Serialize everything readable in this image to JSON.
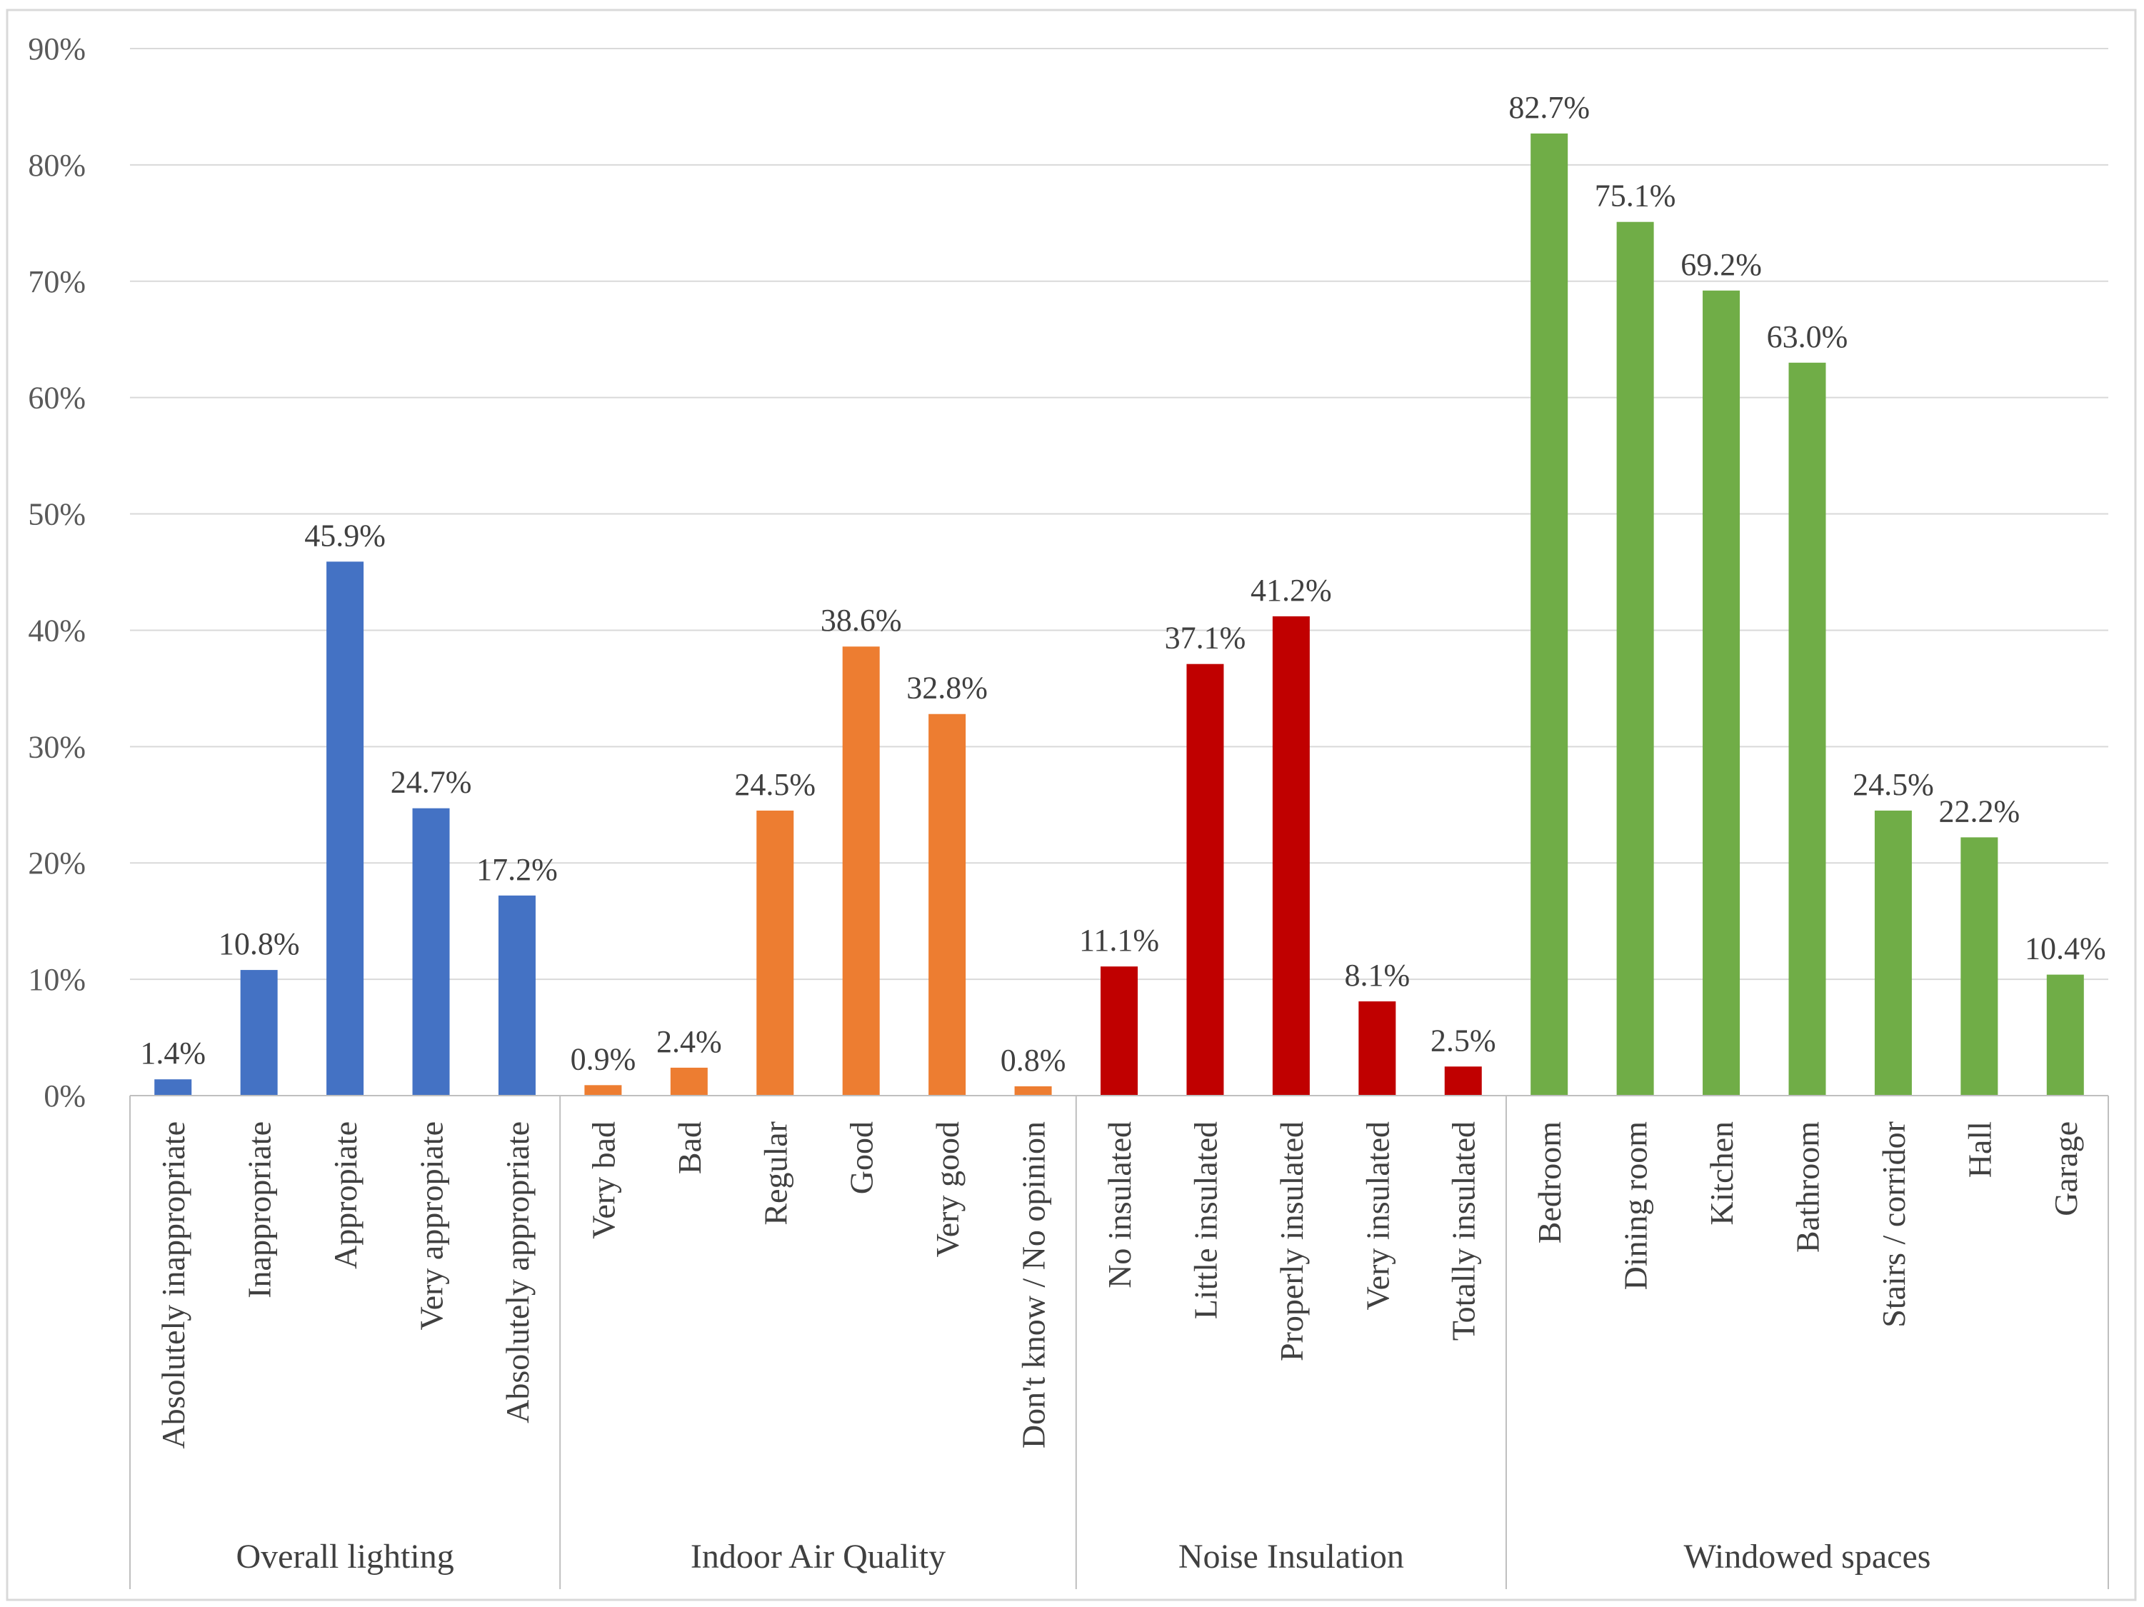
{
  "chart_data": {
    "type": "bar",
    "title": "",
    "xlabel": "",
    "ylabel": "",
    "ylim": [
      0,
      90
    ],
    "yticks": [
      "0%",
      "10%",
      "20%",
      "30%",
      "40%",
      "50%",
      "60%",
      "70%",
      "80%",
      "90%"
    ],
    "grid": true,
    "groups": [
      {
        "name": "Overall lighting",
        "color": "#4472c4",
        "categories": [
          "Absolutely inappropriate",
          "Inappropriate",
          "Appropiate",
          "Very appropiate",
          "Absolutely appropriate"
        ],
        "values": [
          1.4,
          10.8,
          45.9,
          24.7,
          17.2
        ],
        "labels": [
          "1.4%",
          "10.8%",
          "45.9%",
          "24.7%",
          "17.2%"
        ]
      },
      {
        "name": "Indoor Air Quality",
        "color": "#ed7d31",
        "categories": [
          "Very bad",
          "Bad",
          "Regular",
          "Good",
          "Very good",
          "Don't know / No opinion"
        ],
        "values": [
          0.9,
          2.4,
          24.5,
          38.6,
          32.8,
          0.8
        ],
        "labels": [
          "0.9%",
          "2.4%",
          "24.5%",
          "38.6%",
          "32.8%",
          "0.8%"
        ]
      },
      {
        "name": "Noise Insulation",
        "color": "#c00000",
        "categories": [
          "No insulated",
          "Little insulated",
          "Properly insulated",
          "Very insulated",
          "Totally insulated"
        ],
        "values": [
          11.1,
          37.1,
          41.2,
          8.1,
          2.5
        ],
        "labels": [
          "11.1%",
          "37.1%",
          "41.2%",
          "8.1%",
          "2.5%"
        ]
      },
      {
        "name": "Windowed spaces",
        "color": "#70ad47",
        "categories": [
          "Bedroom",
          "Dining room",
          "Kitchen",
          "Bathroom",
          "Stairs / corridor",
          "Hall",
          "Garage"
        ],
        "values": [
          82.7,
          75.1,
          69.2,
          63.0,
          24.5,
          22.2,
          10.4
        ],
        "labels": [
          "82.7%",
          "75.1%",
          "69.2%",
          "63.0%",
          "24.5%",
          "22.2%",
          "10.4%"
        ]
      }
    ]
  }
}
